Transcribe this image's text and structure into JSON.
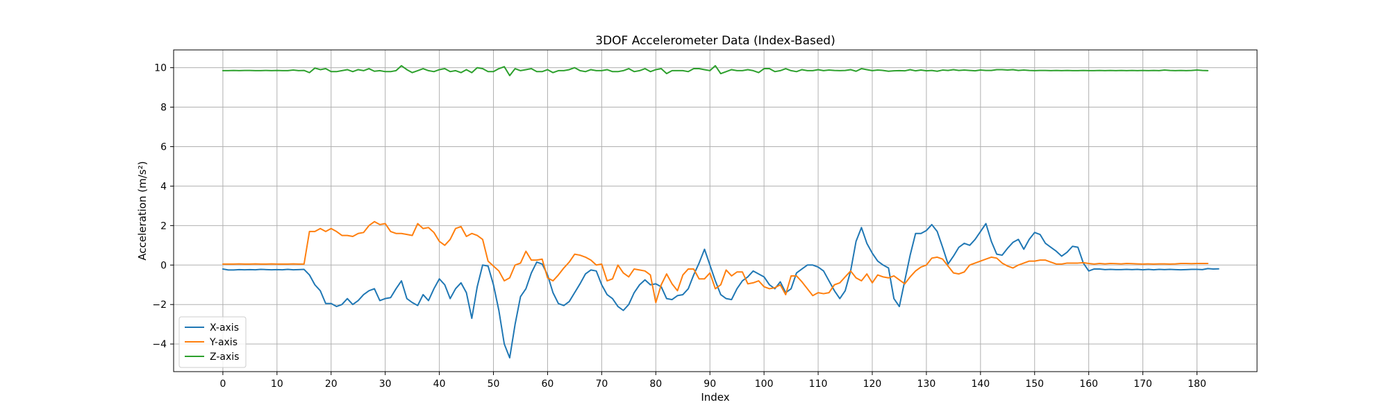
{
  "chart_data": {
    "type": "line",
    "title": "3DOF Accelerometer Data (Index-Based)",
    "xlabel": "Index",
    "ylabel": "Acceleration (m/s²)",
    "xlim": [
      -9.1,
      191.1
    ],
    "ylim": [
      -5.4,
      10.9
    ],
    "x_ticks": [
      0,
      10,
      20,
      30,
      40,
      50,
      60,
      70,
      80,
      90,
      100,
      110,
      120,
      130,
      140,
      150,
      160,
      170,
      180
    ],
    "y_ticks": [
      -4,
      -2,
      0,
      2,
      4,
      6,
      8,
      10
    ],
    "grid": true,
    "legend_position": "lower-left",
    "series": [
      {
        "name": "X-axis",
        "color": "#1f77b4",
        "values": [
          -0.2,
          -0.25,
          -0.25,
          -0.23,
          -0.24,
          -0.23,
          -0.24,
          -0.22,
          -0.23,
          -0.24,
          -0.23,
          -0.24,
          -0.22,
          -0.24,
          -0.23,
          -0.22,
          -0.5,
          -1.0,
          -1.3,
          -1.95,
          -1.95,
          -2.1,
          -2.0,
          -1.7,
          -2.0,
          -1.8,
          -1.5,
          -1.3,
          -1.2,
          -1.8,
          -1.7,
          -1.65,
          -1.2,
          -0.8,
          -1.7,
          -1.9,
          -2.05,
          -1.5,
          -1.8,
          -1.2,
          -0.7,
          -1.0,
          -1.7,
          -1.2,
          -0.9,
          -1.4,
          -2.7,
          -1.1,
          0.0,
          -0.05,
          -1.0,
          -2.3,
          -4.0,
          -4.7,
          -3.0,
          -1.6,
          -1.2,
          -0.4,
          0.15,
          0.05,
          -0.5,
          -1.4,
          -1.95,
          -2.05,
          -1.85,
          -1.4,
          -0.95,
          -0.45,
          -0.25,
          -0.3,
          -1.0,
          -1.5,
          -1.7,
          -2.1,
          -2.3,
          -2.0,
          -1.4,
          -1.0,
          -0.75,
          -1.0,
          -0.95,
          -1.1,
          -1.7,
          -1.75,
          -1.55,
          -1.5,
          -1.2,
          -0.5,
          0.1,
          0.8,
          0.0,
          -0.8,
          -1.5,
          -1.7,
          -1.75,
          -1.2,
          -0.8,
          -0.6,
          -0.3,
          -0.45,
          -0.6,
          -1.0,
          -1.2,
          -0.85,
          -1.4,
          -1.2,
          -0.4,
          -0.2,
          0.0,
          0.0,
          -0.1,
          -0.3,
          -0.8,
          -1.3,
          -1.7,
          -1.3,
          -0.3,
          1.2,
          1.9,
          1.1,
          0.6,
          0.2,
          0.0,
          -0.15,
          -1.7,
          -2.1,
          -0.8,
          0.5,
          1.6,
          1.6,
          1.75,
          2.05,
          1.7,
          0.9,
          0.05,
          0.45,
          0.9,
          1.1,
          1.0,
          1.3,
          1.7,
          2.1,
          1.2,
          0.55,
          0.5,
          0.85,
          1.15,
          1.3,
          0.8,
          1.3,
          1.65,
          1.55,
          1.1,
          0.9,
          0.7,
          0.45,
          0.65,
          0.95,
          0.9,
          0.1,
          -0.3,
          -0.2,
          -0.2,
          -0.23,
          -0.22,
          -0.23,
          -0.23,
          -0.22,
          -0.23,
          -0.22,
          -0.24,
          -0.22,
          -0.24,
          -0.22,
          -0.23,
          -0.22,
          -0.23,
          -0.24,
          -0.23,
          -0.22,
          -0.22,
          -0.23,
          -0.18,
          -0.2,
          -0.19
        ]
      },
      {
        "name": "Y-axis",
        "color": "#ff7f0e",
        "values": [
          0.05,
          0.05,
          0.05,
          0.06,
          0.05,
          0.05,
          0.06,
          0.05,
          0.05,
          0.06,
          0.05,
          0.05,
          0.05,
          0.06,
          0.05,
          0.05,
          1.7,
          1.7,
          1.85,
          1.7,
          1.85,
          1.7,
          1.5,
          1.5,
          1.45,
          1.6,
          1.65,
          2.0,
          2.2,
          2.05,
          2.1,
          1.7,
          1.6,
          1.6,
          1.55,
          1.5,
          2.1,
          1.85,
          1.9,
          1.65,
          1.2,
          1.0,
          1.3,
          1.85,
          1.95,
          1.45,
          1.6,
          1.5,
          1.3,
          0.2,
          -0.05,
          -0.3,
          -0.8,
          -0.65,
          0.0,
          0.1,
          0.7,
          0.25,
          0.25,
          0.3,
          -0.65,
          -0.8,
          -0.5,
          -0.15,
          0.15,
          0.55,
          0.5,
          0.4,
          0.25,
          0.0,
          0.05,
          -0.8,
          -0.7,
          0.0,
          -0.4,
          -0.6,
          -0.2,
          -0.25,
          -0.3,
          -0.5,
          -1.9,
          -1.0,
          -0.45,
          -0.95,
          -1.3,
          -0.5,
          -0.2,
          -0.2,
          -0.7,
          -0.7,
          -0.4,
          -1.2,
          -1.0,
          -0.25,
          -0.55,
          -0.35,
          -0.35,
          -0.95,
          -0.9,
          -0.8,
          -1.1,
          -1.2,
          -1.15,
          -1.0,
          -1.5,
          -0.55,
          -0.55,
          -0.85,
          -1.2,
          -1.55,
          -1.4,
          -1.45,
          -1.4,
          -1.0,
          -0.9,
          -0.6,
          -0.3,
          -0.65,
          -0.8,
          -0.45,
          -0.9,
          -0.5,
          -0.6,
          -0.65,
          -0.55,
          -0.75,
          -0.95,
          -0.6,
          -0.3,
          -0.1,
          0.0,
          0.35,
          0.4,
          0.3,
          -0.05,
          -0.4,
          -0.45,
          -0.35,
          0.0,
          0.1,
          0.2,
          0.3,
          0.4,
          0.35,
          0.1,
          -0.05,
          -0.15,
          0.0,
          0.1,
          0.2,
          0.2,
          0.25,
          0.25,
          0.15,
          0.05,
          0.05,
          0.1,
          0.1,
          0.1,
          0.12,
          0.08,
          0.05,
          0.08,
          0.06,
          0.08,
          0.07,
          0.06,
          0.08,
          0.07,
          0.06,
          0.05,
          0.06,
          0.05,
          0.06,
          0.06,
          0.05,
          0.06,
          0.08,
          0.08,
          0.07,
          0.08,
          0.08,
          0.08
        ]
      },
      {
        "name": "Z-axis",
        "color": "#2ca02c",
        "values": [
          9.85,
          9.85,
          9.86,
          9.85,
          9.86,
          9.86,
          9.85,
          9.85,
          9.86,
          9.85,
          9.86,
          9.85,
          9.85,
          9.88,
          9.85,
          9.86,
          9.75,
          9.98,
          9.9,
          9.95,
          9.8,
          9.8,
          9.85,
          9.9,
          9.8,
          9.9,
          9.85,
          9.95,
          9.82,
          9.85,
          9.8,
          9.8,
          9.85,
          10.1,
          9.9,
          9.75,
          9.85,
          9.95,
          9.85,
          9.8,
          9.9,
          9.95,
          9.8,
          9.85,
          9.75,
          9.9,
          9.75,
          10.0,
          9.95,
          9.8,
          9.8,
          9.95,
          10.05,
          9.6,
          9.95,
          9.85,
          9.9,
          9.95,
          9.8,
          9.8,
          9.9,
          9.75,
          9.85,
          9.85,
          9.9,
          10.0,
          9.85,
          9.8,
          9.9,
          9.85,
          9.85,
          9.9,
          9.8,
          9.8,
          9.85,
          9.95,
          9.8,
          9.85,
          9.95,
          9.8,
          9.9,
          9.95,
          9.7,
          9.85,
          9.85,
          9.85,
          9.8,
          9.95,
          9.95,
          9.9,
          9.85,
          10.1,
          9.7,
          9.8,
          9.9,
          9.85,
          9.85,
          9.9,
          9.85,
          9.75,
          9.95,
          9.95,
          9.8,
          9.85,
          9.95,
          9.85,
          9.8,
          9.9,
          9.85,
          9.85,
          9.9,
          9.85,
          9.88,
          9.86,
          9.85,
          9.86,
          9.9,
          9.82,
          9.95,
          9.9,
          9.85,
          9.88,
          9.86,
          9.82,
          9.84,
          9.85,
          9.84,
          9.9,
          9.84,
          9.88,
          9.84,
          9.86,
          9.82,
          9.88,
          9.86,
          9.9,
          9.86,
          9.88,
          9.86,
          9.84,
          9.88,
          9.86,
          9.86,
          9.9,
          9.9,
          9.88,
          9.9,
          9.86,
          9.88,
          9.86,
          9.85,
          9.86,
          9.86,
          9.85,
          9.86,
          9.85,
          9.86,
          9.85,
          9.85,
          9.86,
          9.85,
          9.85,
          9.86,
          9.85,
          9.86,
          9.85,
          9.86,
          9.85,
          9.86,
          9.85,
          9.86,
          9.85,
          9.86,
          9.85,
          9.88,
          9.86,
          9.85,
          9.86,
          9.85,
          9.86,
          9.88,
          9.86,
          9.85
        ]
      }
    ]
  }
}
